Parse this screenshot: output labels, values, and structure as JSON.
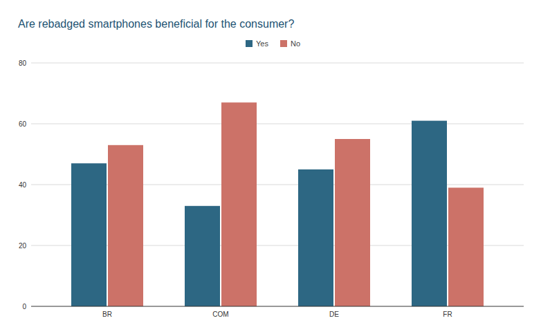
{
  "chart_data": {
    "type": "bar",
    "title": "Are rebadged smartphones beneficial for the consumer?",
    "categories": [
      "BR",
      "COM",
      "DE",
      "FR"
    ],
    "series": [
      {
        "name": "Yes",
        "color": "#2d6783",
        "values": [
          47,
          33,
          45,
          61
        ]
      },
      {
        "name": "No",
        "color": "#cc7268",
        "values": [
          53,
          67,
          55,
          39
        ]
      }
    ],
    "ylim": [
      0,
      80
    ],
    "yticks": [
      0,
      20,
      40,
      60,
      80
    ],
    "grid": true,
    "legend": "top"
  }
}
